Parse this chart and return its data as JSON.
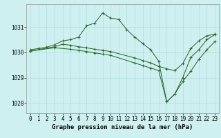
{
  "lines": [
    {
      "x": [
        0,
        1,
        2,
        3,
        4,
        5,
        6,
        7,
        8,
        9,
        10,
        11,
        12,
        13,
        14,
        15,
        16,
        17,
        18,
        19,
        20,
        21,
        22,
        23
      ],
      "y": [
        1030.1,
        1030.15,
        1030.2,
        1030.3,
        1030.45,
        1030.5,
        1030.6,
        1031.05,
        1031.15,
        1031.55,
        1031.35,
        1031.3,
        1030.9,
        1030.6,
        1030.35,
        1030.1,
        1029.65,
        1028.05,
        1028.35,
        1029.0,
        1029.8,
        1030.1,
        1030.5,
        1030.7
      ]
    },
    {
      "x": [
        0,
        3,
        4,
        5,
        6,
        7,
        8,
        9,
        10,
        13,
        14,
        15,
        16,
        17,
        18,
        19,
        20,
        21,
        22,
        23
      ],
      "y": [
        1030.05,
        1030.22,
        1030.32,
        1030.28,
        1030.22,
        1030.18,
        1030.12,
        1030.08,
        1030.03,
        1029.78,
        1029.68,
        1029.58,
        1029.45,
        1029.35,
        1029.28,
        1029.55,
        1030.15,
        1030.45,
        1030.65,
        1030.72
      ]
    },
    {
      "x": [
        0,
        3,
        5,
        6,
        7,
        8,
        9,
        10,
        13,
        14,
        15,
        16,
        17,
        18,
        19,
        20,
        21,
        22,
        23
      ],
      "y": [
        1030.05,
        1030.18,
        1030.12,
        1030.08,
        1030.03,
        1029.98,
        1029.93,
        1029.88,
        1029.58,
        1029.48,
        1029.38,
        1029.28,
        1028.05,
        1028.35,
        1028.85,
        1029.25,
        1029.72,
        1030.1,
        1030.42
      ]
    }
  ],
  "line_color": "#2d6a2d",
  "marker": "+",
  "marker_size": 2.5,
  "marker_edge_width": 0.8,
  "line_width": 0.75,
  "xlim": [
    -0.5,
    23.5
  ],
  "ylim": [
    1027.6,
    1031.9
  ],
  "yticks": [
    1028,
    1029,
    1030,
    1031
  ],
  "xticks": [
    0,
    1,
    2,
    3,
    4,
    5,
    6,
    7,
    8,
    9,
    10,
    11,
    12,
    13,
    14,
    15,
    16,
    17,
    18,
    19,
    20,
    21,
    22,
    23
  ],
  "xlabel": "Graphe pression niveau de la mer (hPa)",
  "bg_color": "#cff0f0",
  "grid_color": "#a8d8d8",
  "label_fontsize": 6.5,
  "tick_fontsize": 5.5
}
